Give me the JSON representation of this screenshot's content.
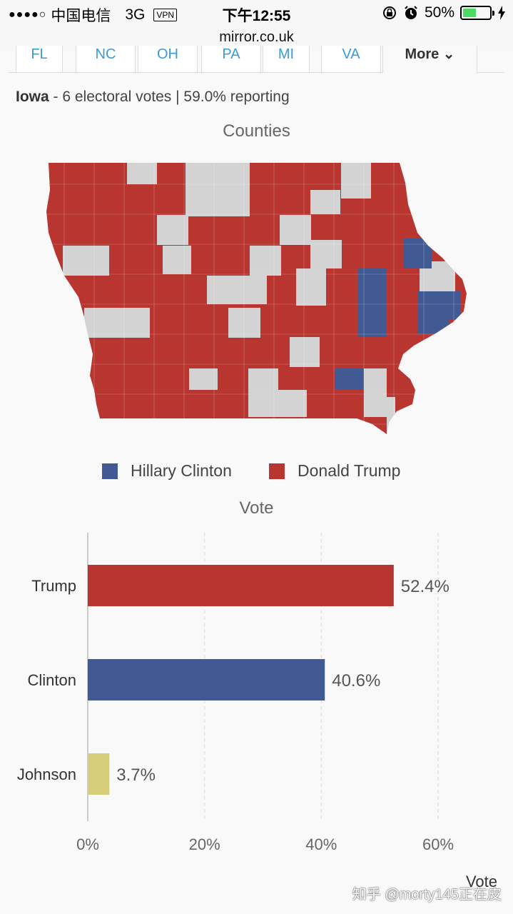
{
  "statusbar": {
    "carrier": "中国电信",
    "network": "3G",
    "vpn": "VPN",
    "time": "下午12:55",
    "battery_percent": "50%",
    "battery_level": 0.5,
    "signal_dots": "●●●●○"
  },
  "urlbar": {
    "url": "mirror.co.uk"
  },
  "tabs": [
    {
      "label": "FL"
    },
    {
      "label": "NC"
    },
    {
      "label": "OH"
    },
    {
      "label": "PA"
    },
    {
      "label": "MI"
    },
    {
      "label": "VA"
    },
    {
      "label": "More"
    }
  ],
  "state": {
    "name": "Iowa",
    "details": " - 6 electoral votes | 59.0% reporting"
  },
  "map": {
    "title": "Counties",
    "colors": {
      "clinton": "#425a94",
      "trump": "#b83530",
      "no_result": "#d3d3d3"
    }
  },
  "legend": {
    "clinton": "Hillary Clinton",
    "trump": "Donald Trump"
  },
  "chart_data": {
    "type": "bar",
    "orientation": "horizontal",
    "title": "Vote",
    "categories": [
      "Trump",
      "Clinton",
      "Johnson"
    ],
    "values": [
      52.4,
      40.6,
      3.7
    ],
    "value_labels": [
      "52.4%",
      "40.6%",
      "3.7%"
    ],
    "colors": [
      "#b83530",
      "#425a94",
      "#d4cd7a"
    ],
    "xlim": [
      0,
      60
    ],
    "xticks": [
      0,
      20,
      40,
      60
    ],
    "xtick_labels": [
      "0%",
      "20%",
      "40%",
      "60%"
    ],
    "xlabel": "Vote",
    "grid": true
  },
  "watermark": "知乎 @morty145正在皮"
}
